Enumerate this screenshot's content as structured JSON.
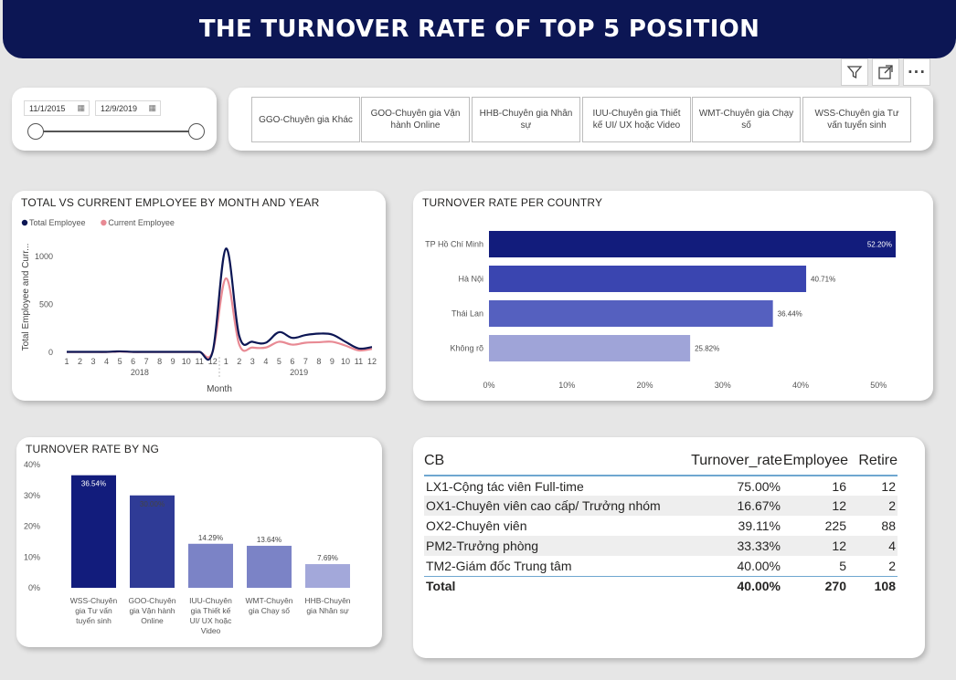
{
  "header": {
    "title": "THE TURNOVER RATE OF TOP 5 POSITION"
  },
  "toolbar": {
    "filter_icon": "filter-icon",
    "expand_icon": "focus-mode-icon",
    "more_icon": "more-options-icon",
    "more_label": "···"
  },
  "date_slicer": {
    "start": "11/1/2015",
    "end": "12/9/2019"
  },
  "position_slicer": {
    "items": [
      "GGO-Chuyên gia Khác",
      "GOO-Chuyên gia Vận hành Online",
      "HHB-Chuyên gia Nhân sự",
      "IUU-Chuyên gia Thiết kế UI/ UX hoặc Video",
      "WMT-Chuyên gia Chạy số",
      "WSS-Chuyên gia Tư vấn tuyển sinh"
    ]
  },
  "chart_data": [
    {
      "type": "line",
      "title": "TOTAL VS CURRENT EMPLOYEE BY MONTH AND YEAR",
      "xlabel": "Month",
      "ylabel": "Total Employee and Curr...",
      "x_ticks": [
        "1",
        "2",
        "3",
        "4",
        "5",
        "6",
        "7",
        "8",
        "9",
        "10",
        "11",
        "12",
        "1",
        "2",
        "3",
        "4",
        "5",
        "6",
        "7",
        "8",
        "9",
        "10",
        "11",
        "12"
      ],
      "year_labels": [
        "2018",
        "2019"
      ],
      "y_ticks": [
        "0",
        "500",
        "1000"
      ],
      "ylim": [
        0,
        1150
      ],
      "legend": "top-left",
      "series": [
        {
          "name": "Total Employee",
          "color": "#0c1654",
          "values": [
            5,
            5,
            5,
            5,
            10,
            5,
            5,
            5,
            5,
            5,
            5,
            10,
            1080,
            170,
            110,
            100,
            210,
            150,
            180,
            195,
            185,
            110,
            40,
            55
          ]
        },
        {
          "name": "Current Employee",
          "color": "#e88a94",
          "values": [
            3,
            3,
            3,
            3,
            8,
            3,
            3,
            3,
            3,
            3,
            3,
            8,
            770,
            80,
            50,
            50,
            110,
            80,
            100,
            105,
            110,
            70,
            20,
            35
          ]
        }
      ]
    },
    {
      "type": "bar",
      "orientation": "horizontal",
      "title": "TURNOVER RATE PER COUNTRY",
      "categories": [
        "TP Hồ Chí Minh",
        "Hà Nội",
        "Thái Lan",
        "Không rõ"
      ],
      "values": [
        52.2,
        40.71,
        36.44,
        25.82
      ],
      "data_labels": [
        "52.20%",
        "40.71%",
        "36.44%",
        "25.82%"
      ],
      "colors": [
        "#121c7c",
        "#3a45b0",
        "#5560bf",
        "#9fa4d8"
      ],
      "x_ticks": [
        "0%",
        "10%",
        "20%",
        "30%",
        "40%",
        "50%"
      ],
      "xlim": [
        0,
        52.2
      ]
    },
    {
      "type": "bar",
      "title": "TURNOVER RATE BY NG",
      "categories": [
        "WSS-Chuyên gia Tư vấn tuyển sinh",
        "GOO-Chuyên gia Vận hành Online",
        "IUU-Chuyên gia Thiết kế UI/ UX hoặc Video",
        "WMT-Chuyên gia Chạy số",
        "HHB-Chuyên gia Nhân sự"
      ],
      "category_lines": [
        [
          "WSS-Chuyên",
          "gia Tư vấn",
          "tuyển sinh"
        ],
        [
          "GOO-Chuyên",
          "gia Vận hành",
          "Online"
        ],
        [
          "IUU-Chuyên",
          "gia Thiết kế",
          "UI/ UX hoặc",
          "Video"
        ],
        [
          "WMT-Chuyên",
          "gia Chạy số"
        ],
        [
          "HHB-Chuyên",
          "gia Nhân sự"
        ]
      ],
      "values": [
        36.54,
        30.0,
        14.29,
        13.64,
        7.69
      ],
      "data_labels": [
        "36.54%",
        "30.00%",
        "14.29%",
        "13.64%",
        "7.69%"
      ],
      "colors": [
        "#121c7c",
        "#2f3b96",
        "#7b83c6",
        "#7b83c6",
        "#a3a8da"
      ],
      "y_ticks": [
        "0%",
        "10%",
        "20%",
        "30%",
        "40%"
      ],
      "ylim": [
        0,
        40
      ]
    },
    {
      "type": "table",
      "columns": [
        "CB",
        "Turnover_rate",
        "Employee",
        "Retire"
      ],
      "rows": [
        [
          "LX1-Cộng tác viên Full-time",
          "75.00%",
          "16",
          "12"
        ],
        [
          "OX1-Chuyên viên cao cấp/ Trưởng nhóm",
          "16.67%",
          "12",
          "2"
        ],
        [
          "OX2-Chuyên viên",
          "39.11%",
          "225",
          "88"
        ],
        [
          "PM2-Trưởng phòng",
          "33.33%",
          "12",
          "4"
        ],
        [
          "TM2-Giám đốc Trung tâm",
          "40.00%",
          "5",
          "2"
        ]
      ],
      "total": [
        "Total",
        "40.00%",
        "270",
        "108"
      ]
    }
  ]
}
